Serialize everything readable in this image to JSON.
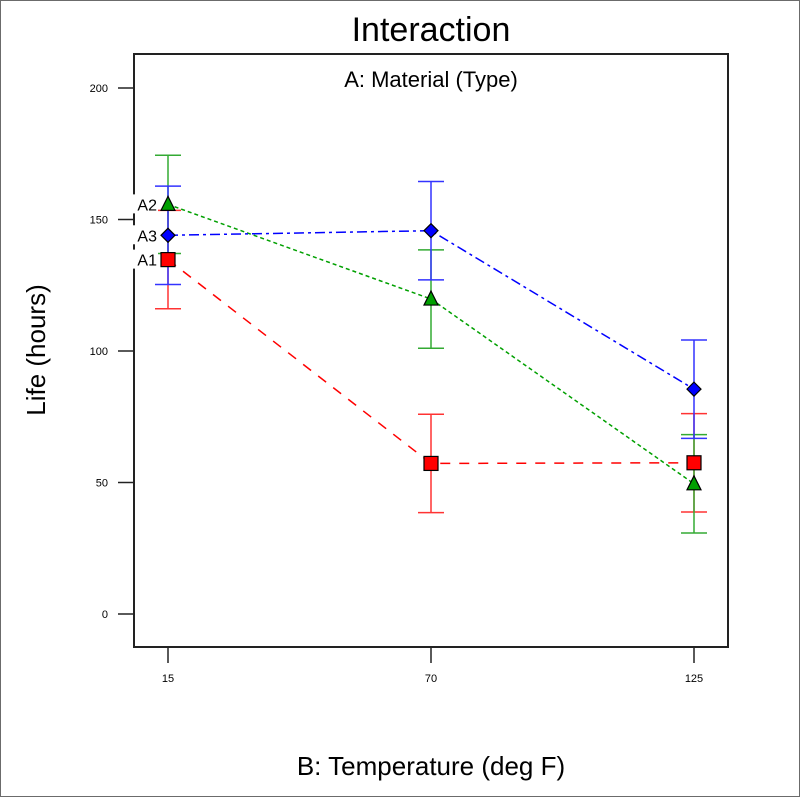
{
  "chart_data": {
    "type": "line",
    "title": "Interaction",
    "subtitle": "A: Material (Type)",
    "xlabel": "B: Temperature (deg F)",
    "ylabel": "Life (hours)",
    "x": [
      15,
      70,
      125
    ],
    "x_tick_labels": [
      "15",
      "70",
      "125"
    ],
    "y_ticks": [
      0,
      50,
      100,
      150,
      200
    ],
    "y_tick_labels": [
      "0",
      "50",
      "100",
      "150",
      "200"
    ],
    "ylim": [
      -12,
      226
    ],
    "grid": false,
    "error_bar_halfwidth": 18.7,
    "series": [
      {
        "name": "A1",
        "color": "#ff0000",
        "marker": "square",
        "line_style": "dashed",
        "values": [
          134.75,
          57.25,
          57.5
        ]
      },
      {
        "name": "A2",
        "color": "#00a000",
        "marker": "triangle",
        "line_style": "dotted",
        "values": [
          155.75,
          119.75,
          49.5
        ]
      },
      {
        "name": "A3",
        "color": "#0000ff",
        "marker": "diamond",
        "line_style": "dash-dot",
        "values": [
          144.0,
          145.75,
          85.5
        ]
      }
    ],
    "errorbar_colors": {
      "A1": "#ff3333",
      "A2": "#33aa33",
      "A3": "#3333ff"
    },
    "label_order_on_left": [
      "A2",
      "A3",
      "A1"
    ]
  }
}
